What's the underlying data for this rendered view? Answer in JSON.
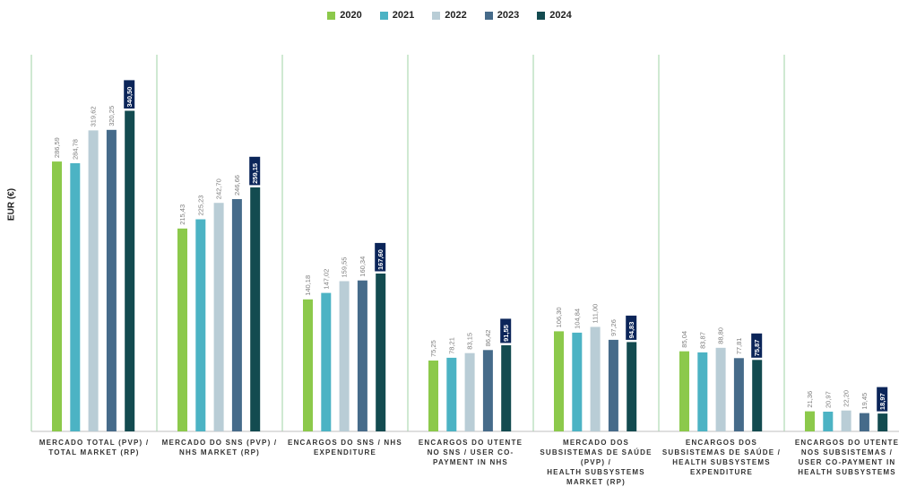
{
  "chart_data": {
    "type": "bar",
    "ylabel": "EUR (€)",
    "ylim": [
      0,
      380
    ],
    "colors": {
      "2020": "#8cc94b",
      "2021": "#4cb3c4",
      "2022": "#b9cdd6",
      "2023": "#466b8a",
      "2024": "#134b50",
      "divider": "#9fd3a6",
      "highlight_label_bg": "#0b2559"
    },
    "series": [
      {
        "name": "2020",
        "values": [
          286.59,
          215.43,
          140.18,
          75.25,
          106.3,
          85.04,
          21.36
        ],
        "labels": [
          "286,59",
          "215,43",
          "140,18",
          "75,25",
          "106,30",
          "85,04",
          "21,36"
        ]
      },
      {
        "name": "2021",
        "values": [
          284.78,
          225.23,
          147.02,
          78.21,
          104.84,
          83.87,
          20.97
        ],
        "labels": [
          "284,78",
          "225,23",
          "147,02",
          "78,21",
          "104,84",
          "83,87",
          "20,97"
        ]
      },
      {
        "name": "2022",
        "values": [
          319.62,
          242.7,
          159.55,
          83.15,
          111.0,
          88.8,
          22.2
        ],
        "labels": [
          "319,62",
          "242,70",
          "159,55",
          "83,15",
          "111,00",
          "88,80",
          "22,20"
        ]
      },
      {
        "name": "2023",
        "values": [
          320.25,
          246.66,
          160.34,
          86.42,
          97.26,
          77.81,
          19.45
        ],
        "labels": [
          "320,25",
          "246,66",
          "160,34",
          "86,42",
          "97,26",
          "77,81",
          "19,45"
        ]
      },
      {
        "name": "2024",
        "values": [
          340.5,
          259.15,
          167.6,
          91.55,
          94.83,
          75.87,
          18.97
        ],
        "labels": [
          "340,50",
          "259,15",
          "167,60",
          "91,55",
          "94,83",
          "75,87",
          "18,97"
        ]
      }
    ],
    "categories": [
      "MERCADO TOTAL (PVP) /\nTOTAL MARKET (RP)",
      "MERCADO DO SNS (PVP) /\nNHS MARKET (RP)",
      "ENCARGOS DO SNS /  NHS\nEXPENDITURE",
      "ENCARGOS DO UTENTE\nNO SNS / USER CO-\nPAYMENT IN NHS",
      "MERCADO DOS\nSUBSISTEMAS DE SAÚDE\n(PVP) /\nHEALTH SUBSYSTEMS\nMARKET (RP)",
      "ENCARGOS DOS\nSUBSISTEMAS DE SAÚDE /\nHEALTH SUBSYSTEMS\nEXPENDITURE",
      "ENCARGOS DO UTENTE\nNOS SUBSISTEMAS /\nUSER CO-PAYMENT IN\nHEALTH SUBSYSTEMS"
    ],
    "legend_position": "top-center",
    "grid": false
  }
}
